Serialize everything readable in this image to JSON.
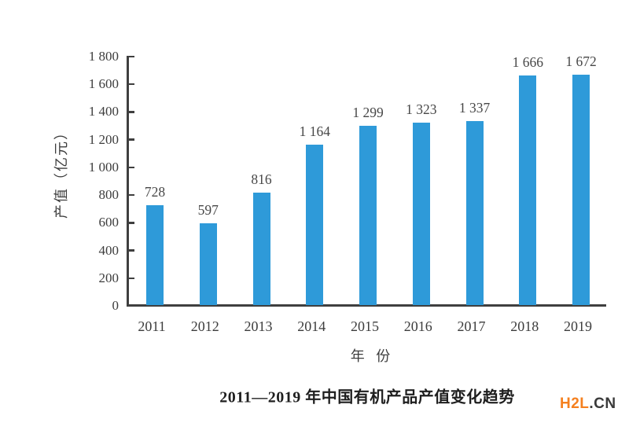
{
  "chart_data": {
    "type": "bar",
    "categories": [
      "2011",
      "2012",
      "2013",
      "2014",
      "2015",
      "2016",
      "2017",
      "2018",
      "2019"
    ],
    "values": [
      728,
      597,
      816,
      1164,
      1299,
      1323,
      1337,
      1666,
      1672
    ],
    "value_labels": [
      "728",
      "597",
      "816",
      "1 164",
      "1 299",
      "1 323",
      "1 337",
      "1 666",
      "1 672"
    ],
    "title": "2011—2019 年中国有机产品产值变化趋势",
    "xlabel": "年 份",
    "ylabel": "产值（亿元）",
    "ylim": [
      0,
      1800
    ],
    "ytick_step": 200,
    "ytick_labels": [
      "0",
      "200",
      "400",
      "600",
      "800",
      "1 000",
      "1 200",
      "1 400",
      "1 600",
      "1 800"
    ],
    "grid": false,
    "legend_position": "none",
    "bar_color": "#2e9ad9",
    "axis_color": "#3f3f3f"
  },
  "footer": {
    "logo": {
      "prefix": "H2L",
      "suffix": ".CN",
      "prefix_color": "#f5801f",
      "suffix_color": "#3a3a3a"
    }
  }
}
